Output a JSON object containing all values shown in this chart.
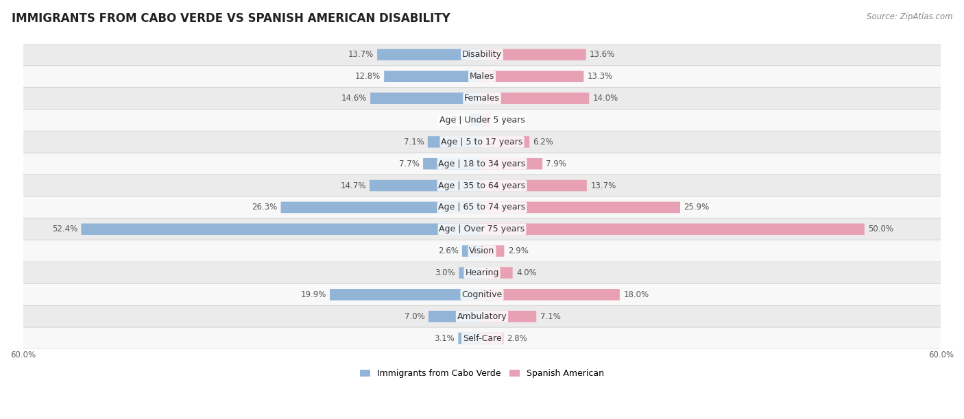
{
  "title": "IMMIGRANTS FROM CABO VERDE VS SPANISH AMERICAN DISABILITY",
  "source": "Source: ZipAtlas.com",
  "categories": [
    "Disability",
    "Males",
    "Females",
    "Age | Under 5 years",
    "Age | 5 to 17 years",
    "Age | 18 to 34 years",
    "Age | 35 to 64 years",
    "Age | 65 to 74 years",
    "Age | Over 75 years",
    "Vision",
    "Hearing",
    "Cognitive",
    "Ambulatory",
    "Self-Care"
  ],
  "cabo_verde": [
    13.7,
    12.8,
    14.6,
    1.7,
    7.1,
    7.7,
    14.7,
    26.3,
    52.4,
    2.6,
    3.0,
    19.9,
    7.0,
    3.1
  ],
  "spanish_american": [
    13.6,
    13.3,
    14.0,
    1.1,
    6.2,
    7.9,
    13.7,
    25.9,
    50.0,
    2.9,
    4.0,
    18.0,
    7.1,
    2.8
  ],
  "max_val": 60.0,
  "cabo_verde_color": "#92b4d7",
  "spanish_american_color": "#e8a0b4",
  "bar_height": 0.52,
  "row_bg_odd": "#ebebeb",
  "row_bg_even": "#f8f8f8",
  "label_color": "#555555",
  "title_fontsize": 12,
  "label_fontsize": 9,
  "value_fontsize": 8.5,
  "legend_label1": "Immigrants from Cabo Verde",
  "legend_label2": "Spanish American"
}
